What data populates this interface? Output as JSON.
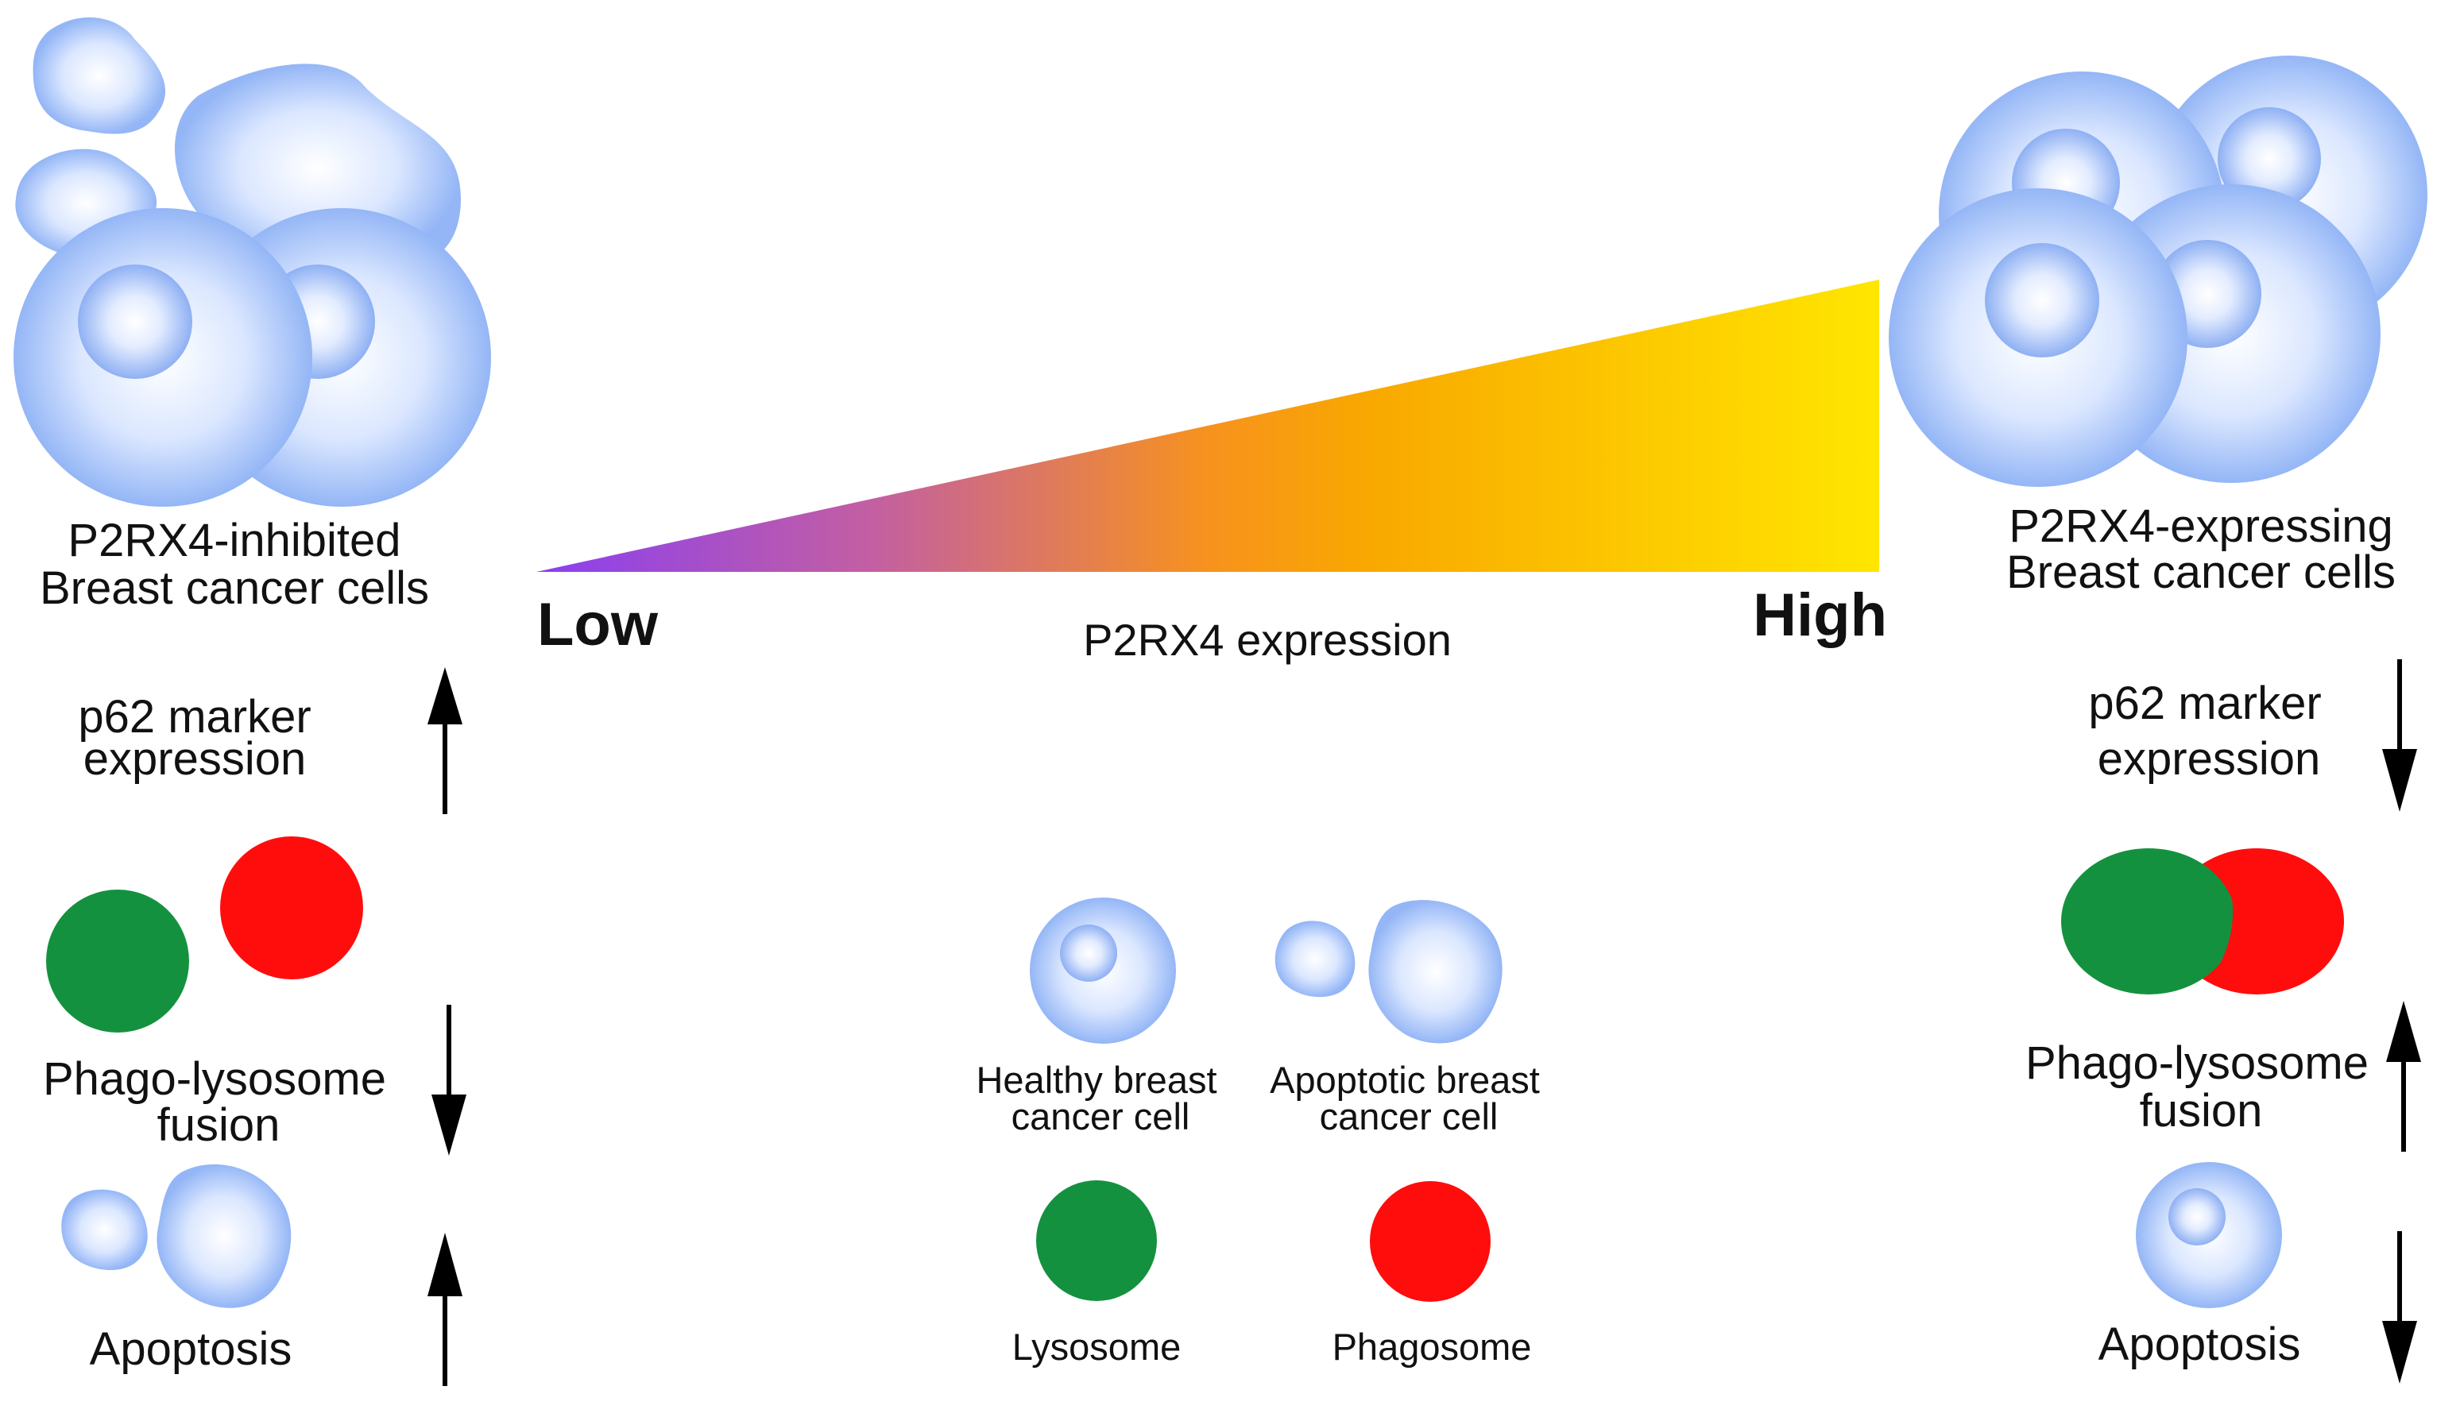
{
  "left": {
    "title_line1": "P2RX4-inhibited",
    "title_line2": "Breast cancer cells",
    "p62_line1": "p62 marker",
    "p62_line2": "expression",
    "p62_direction": "up",
    "fusion_line1": "Phago-lysosome",
    "fusion_line2": "fusion",
    "fusion_direction": "down",
    "apoptosis": "Apoptosis",
    "apoptosis_direction": "up"
  },
  "right": {
    "title_line1": "P2RX4-expressing",
    "title_line2": "Breast cancer cells",
    "p62_line1": "p62 marker",
    "p62_line2": "expression",
    "p62_direction": "down",
    "fusion_line1": "Phago-lysosome",
    "fusion_line2": "fusion",
    "fusion_direction": "up",
    "apoptosis": "Apoptosis",
    "apoptosis_direction": "down"
  },
  "gradient": {
    "low_label": "Low",
    "high_label": "High",
    "axis_label": "P2RX4 expression",
    "colors": [
      "#8a3ff0",
      "#c45fa0",
      "#f7921e",
      "#f9a800",
      "#ffe600"
    ]
  },
  "legend": {
    "healthy_line1": "Healthy breast",
    "healthy_line2": "cancer cell",
    "apoptotic_line1": "Apoptotic breast",
    "apoptotic_line2": "cancer cell",
    "lysosome": "Lysosome",
    "phagosome": "Phagosome"
  },
  "colors": {
    "lysosome": "#14913f",
    "phagosome": "#ff0d0d",
    "cell_center": "#ffffff",
    "cell_edge": "#9dbcf7",
    "arrow": "#000000"
  }
}
